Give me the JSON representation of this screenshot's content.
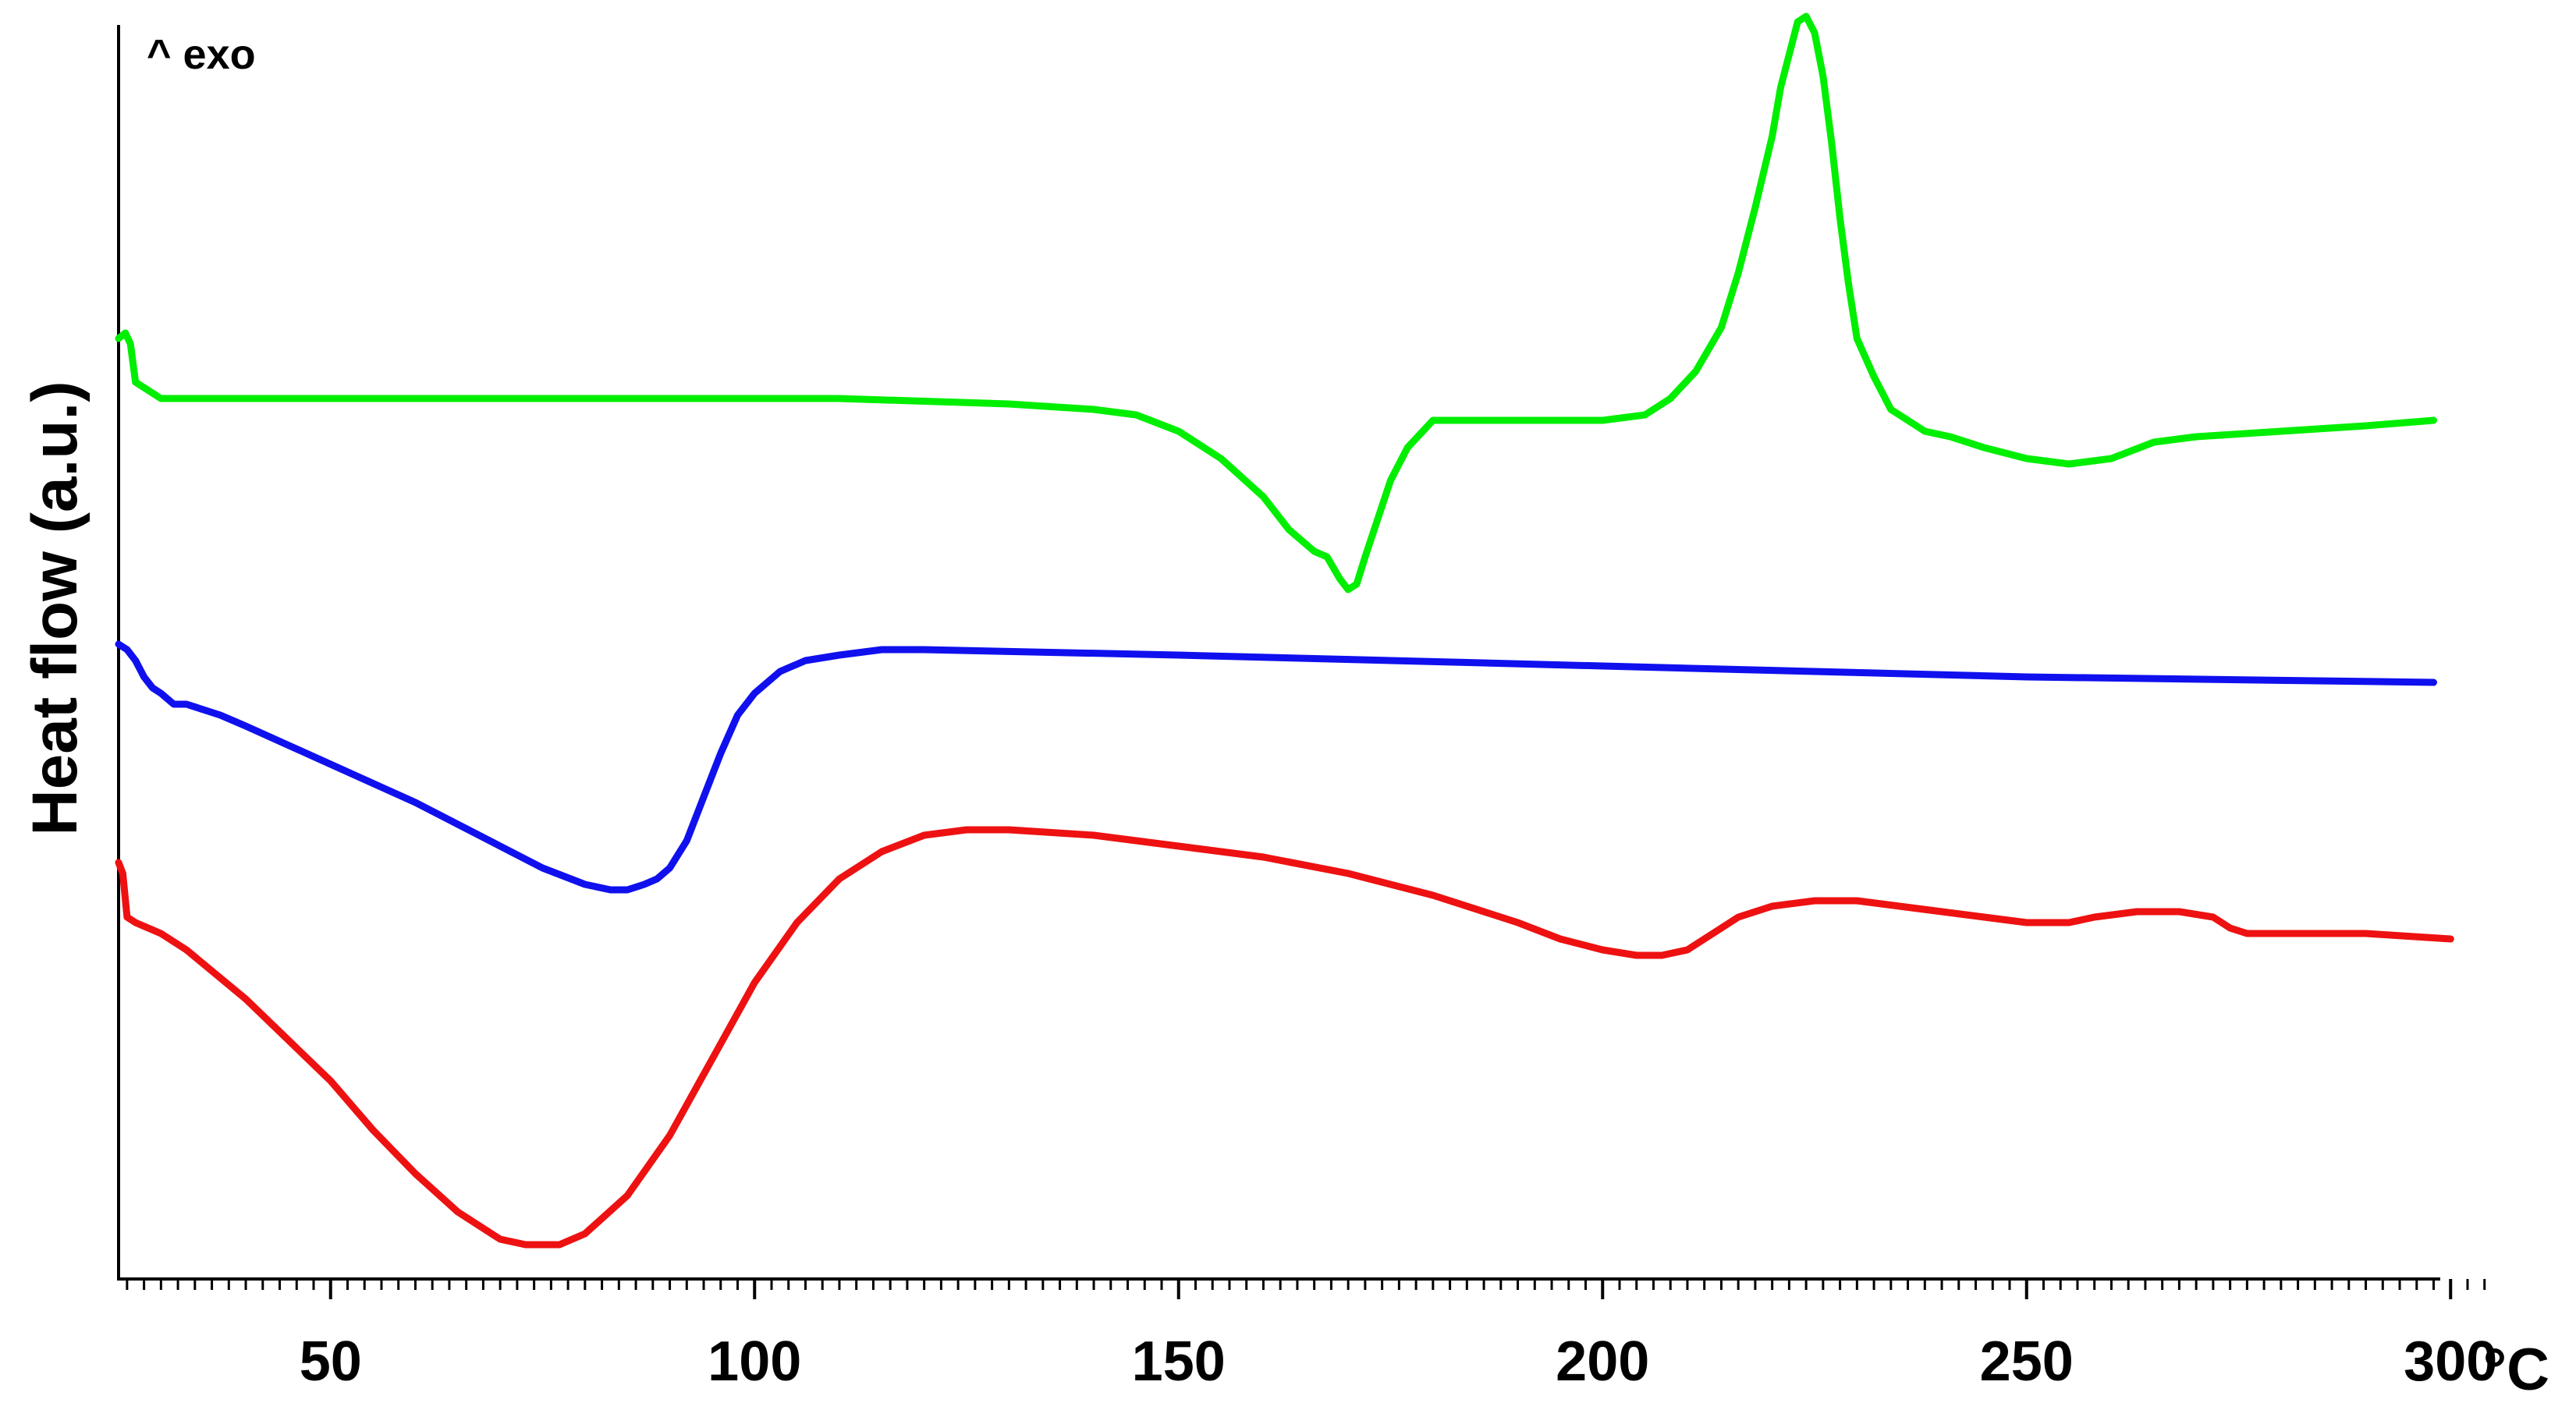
{
  "chart_data": {
    "type": "line",
    "title": "",
    "xlabel": "",
    "ylabel": "Heat flow (a.u.)",
    "x_unit": "°C",
    "annotation": "^ exo",
    "xlim": [
      25,
      300
    ],
    "x_ticks": [
      50,
      100,
      150,
      200,
      250,
      300
    ],
    "x_tick_labels": [
      "50",
      "100",
      "150",
      "200",
      "250",
      "300"
    ],
    "y_ticks": [],
    "grid": false,
    "legend": "none",
    "series": [
      {
        "color": "#00ee00",
        "x": [
          25,
          25.8,
          26.4,
          27,
          30,
          50,
          80,
          110,
          130,
          140,
          145,
          150,
          155,
          160,
          163,
          166,
          167.5,
          169,
          170,
          171,
          172,
          173.5,
          175,
          177,
          180,
          190,
          200,
          205,
          208,
          211,
          214,
          216,
          218,
          220,
          221,
          222,
          223,
          224,
          225,
          226,
          227,
          228,
          229,
          230,
          232,
          234,
          236,
          238,
          241,
          245,
          250,
          255,
          260,
          265,
          270,
          280,
          290,
          298
        ],
        "y": [
          1.66,
          1.67,
          1.65,
          1.58,
          1.55,
          1.55,
          1.55,
          1.55,
          1.54,
          1.53,
          1.52,
          1.49,
          1.44,
          1.37,
          1.31,
          1.27,
          1.26,
          1.22,
          1.2,
          1.21,
          1.26,
          1.33,
          1.4,
          1.46,
          1.51,
          1.51,
          1.51,
          1.52,
          1.55,
          1.6,
          1.68,
          1.78,
          1.9,
          2.03,
          2.12,
          2.18,
          2.24,
          2.25,
          2.22,
          2.14,
          2.02,
          1.88,
          1.76,
          1.66,
          1.59,
          1.53,
          1.51,
          1.49,
          1.48,
          1.46,
          1.44,
          1.43,
          1.44,
          1.47,
          1.48,
          1.49,
          1.5,
          1.51
        ]
      },
      {
        "color": "#1010ee",
        "x": [
          25,
          26,
          27,
          28,
          29,
          30,
          31.5,
          33,
          35,
          37,
          40,
          50,
          60,
          70,
          75,
          80,
          83,
          85,
          87,
          88.5,
          90,
          92,
          94,
          96,
          98,
          100,
          103,
          106,
          110,
          115,
          120,
          150,
          200,
          250,
          298
        ],
        "y": [
          1.1,
          1.09,
          1.07,
          1.04,
          1.02,
          1.01,
          0.99,
          0.99,
          0.98,
          0.97,
          0.95,
          0.88,
          0.81,
          0.73,
          0.69,
          0.66,
          0.65,
          0.65,
          0.66,
          0.67,
          0.69,
          0.74,
          0.82,
          0.9,
          0.97,
          1.01,
          1.05,
          1.07,
          1.08,
          1.09,
          1.09,
          1.08,
          1.06,
          1.04,
          1.03
        ]
      },
      {
        "color": "#ee1111",
        "x": [
          25,
          25.5,
          26,
          27,
          30,
          33,
          40,
          50,
          55,
          60,
          65,
          70,
          73,
          75,
          77,
          80,
          85,
          90,
          95,
          100,
          105,
          110,
          115,
          120,
          125,
          130,
          140,
          150,
          160,
          170,
          180,
          190,
          195,
          200,
          204,
          207,
          210,
          213,
          216,
          220,
          225,
          230,
          235,
          240,
          245,
          250,
          255,
          258,
          263,
          268,
          272,
          274,
          276,
          280,
          290,
          300
        ],
        "y": [
          0.7,
          0.68,
          0.6,
          0.59,
          0.57,
          0.54,
          0.45,
          0.3,
          0.21,
          0.13,
          0.06,
          0.01,
          0.0,
          0.0,
          0.0,
          0.02,
          0.09,
          0.2,
          0.34,
          0.48,
          0.59,
          0.67,
          0.72,
          0.75,
          0.76,
          0.76,
          0.75,
          0.73,
          0.71,
          0.68,
          0.64,
          0.59,
          0.56,
          0.54,
          0.53,
          0.53,
          0.54,
          0.57,
          0.6,
          0.62,
          0.63,
          0.63,
          0.62,
          0.61,
          0.6,
          0.59,
          0.59,
          0.6,
          0.61,
          0.61,
          0.6,
          0.58,
          0.57,
          0.57,
          0.57,
          0.56
        ]
      }
    ]
  }
}
